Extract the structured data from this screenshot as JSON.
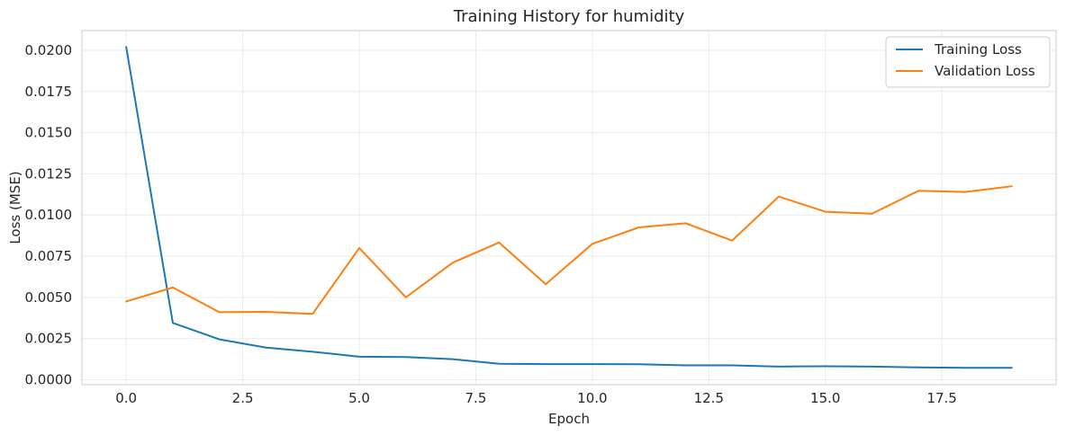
{
  "chart_data": {
    "type": "line",
    "title": "Training History for humidity",
    "xlabel": "Epoch",
    "ylabel": "Loss (MSE)",
    "xlim": [
      -0.95,
      19.95
    ],
    "ylim": [
      -0.0003,
      0.0212
    ],
    "grid": true,
    "legend_placement": "top-right",
    "x_ticks": [
      0.0,
      2.5,
      5.0,
      7.5,
      10.0,
      12.5,
      15.0,
      17.5
    ],
    "x_tick_labels": [
      "0.0",
      "2.5",
      "5.0",
      "7.5",
      "10.0",
      "12.5",
      "15.0",
      "17.5"
    ],
    "y_ticks": [
      0.0,
      0.0025,
      0.005,
      0.0075,
      0.01,
      0.0125,
      0.015,
      0.0175,
      0.02
    ],
    "y_tick_labels": [
      "0.0000",
      "0.0025",
      "0.0050",
      "0.0075",
      "0.0100",
      "0.0125",
      "0.0150",
      "0.0175",
      "0.0200"
    ],
    "x": [
      0,
      1,
      2,
      3,
      4,
      5,
      6,
      7,
      8,
      9,
      10,
      11,
      12,
      13,
      14,
      15,
      16,
      17,
      18,
      19
    ],
    "series": [
      {
        "name": "Training Loss",
        "color": "#1f77b4",
        "values": [
          0.0202,
          0.00345,
          0.00245,
          0.00195,
          0.0017,
          0.0014,
          0.00138,
          0.00125,
          0.00097,
          0.00095,
          0.00095,
          0.00094,
          0.00087,
          0.00087,
          0.0008,
          0.00082,
          0.0008,
          0.00075,
          0.00072,
          0.00072
        ]
      },
      {
        "name": "Validation Loss",
        "color": "#ff7f0e",
        "values": [
          0.00475,
          0.0056,
          0.0041,
          0.00412,
          0.004,
          0.008,
          0.005,
          0.0071,
          0.00833,
          0.0058,
          0.00825,
          0.00925,
          0.0095,
          0.00845,
          0.01112,
          0.0102,
          0.01008,
          0.01147,
          0.0114,
          0.01175
        ]
      }
    ]
  }
}
